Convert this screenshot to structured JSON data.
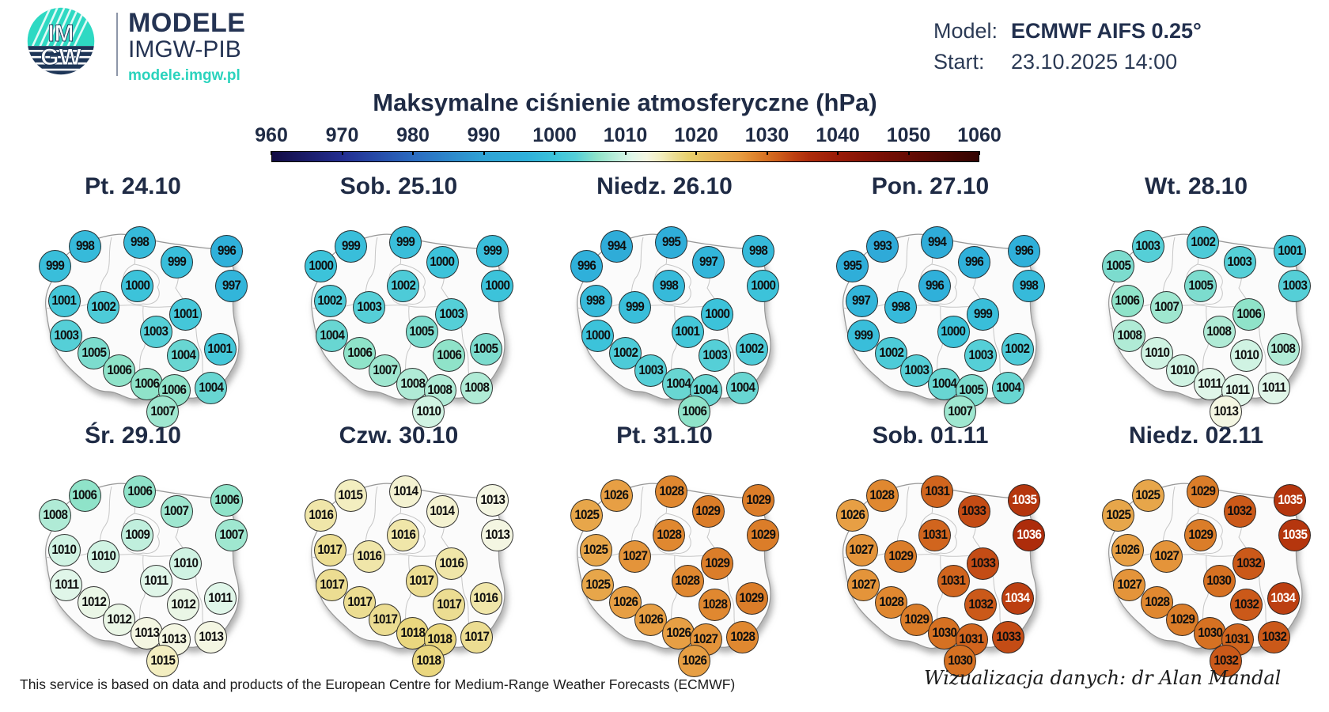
{
  "header": {
    "logo": {
      "top_letters": "IM",
      "bottom_letters": "GW",
      "teal": "#2ed9c3",
      "navy": "#1d3557"
    },
    "brand": "MODELE",
    "org": "IMGW-PIB",
    "site": "modele.imgw.pl",
    "model_label": "Model:",
    "model_value": "ECMWF AIFS 0.25°",
    "start_label": "Start:",
    "start_value": "23.10.2025 14:00"
  },
  "title": "Maksymalne ciśnienie atmosferyczne (hPa)",
  "footer": {
    "left": "This service is based on data and products of the European Centre for Medium-Range Weather Forecasts (ECMWF)",
    "right": "Wizualizacja danych: dr Alan Mandal"
  },
  "styles": {
    "accent_teal": "#2bd3bd",
    "dark_navy": "#1f2b45",
    "white_text_min": 1034
  },
  "chart_data": {
    "type": "heatmap",
    "title": "Maksymalne ciśnienie atmosferyczne (hPa)",
    "legend_position": "top",
    "colorbar_range": [
      960,
      1060
    ],
    "colorbar_ticks": [
      960,
      970,
      980,
      990,
      1000,
      1010,
      1020,
      1030,
      1040,
      1050,
      1060
    ],
    "colormap": [
      [
        960,
        "#130c43"
      ],
      [
        970,
        "#232e91"
      ],
      [
        980,
        "#2b6bc0"
      ],
      [
        990,
        "#2fa3d5"
      ],
      [
        996,
        "#2fb0da"
      ],
      [
        1000,
        "#3cc3da"
      ],
      [
        1003,
        "#55cfd7"
      ],
      [
        1006,
        "#8fe3c9"
      ],
      [
        1009,
        "#c0efdd"
      ],
      [
        1011,
        "#e0f6e9"
      ],
      [
        1013,
        "#f4f6e2"
      ],
      [
        1015,
        "#f3eec0"
      ],
      [
        1017,
        "#ecdd92"
      ],
      [
        1019,
        "#e8d06c"
      ],
      [
        1022,
        "#e8b95a"
      ],
      [
        1026,
        "#e79f44"
      ],
      [
        1028,
        "#e08830"
      ],
      [
        1030,
        "#d67122"
      ],
      [
        1032,
        "#cb5919"
      ],
      [
        1034,
        "#bc3f11"
      ],
      [
        1036,
        "#ad2c0b"
      ],
      [
        1040,
        "#9a1c08"
      ],
      [
        1046,
        "#7a1005"
      ],
      [
        1052,
        "#5c0a03"
      ],
      [
        1060,
        "#330402"
      ]
    ],
    "station_positions_pct": [
      [
        29,
        21
      ],
      [
        53,
        19
      ],
      [
        69,
        28
      ],
      [
        91,
        23
      ],
      [
        16,
        30
      ],
      [
        52,
        39
      ],
      [
        93,
        39
      ],
      [
        20,
        46
      ],
      [
        37,
        49
      ],
      [
        73,
        52
      ],
      [
        21,
        62
      ],
      [
        60,
        60
      ],
      [
        33,
        70
      ],
      [
        72,
        71
      ],
      [
        88,
        68
      ],
      [
        44,
        78
      ],
      [
        56,
        84
      ],
      [
        68,
        87
      ],
      [
        84,
        86
      ],
      [
        63,
        97
      ]
    ],
    "days": [
      {
        "label": "Pt. 24.10",
        "values": [
          998,
          998,
          999,
          996,
          999,
          1000,
          997,
          1001,
          1002,
          1001,
          1003,
          1003,
          1005,
          1004,
          1001,
          1006,
          1006,
          1006,
          1004,
          1007
        ]
      },
      {
        "label": "Sob. 25.10",
        "values": [
          999,
          999,
          1000,
          999,
          1000,
          1002,
          1000,
          1002,
          1003,
          1003,
          1004,
          1005,
          1006,
          1006,
          1005,
          1007,
          1008,
          1008,
          1008,
          1010
        ]
      },
      {
        "label": "Niedz. 26.10",
        "values": [
          994,
          995,
          997,
          998,
          996,
          998,
          1000,
          998,
          999,
          1000,
          1000,
          1001,
          1002,
          1003,
          1002,
          1003,
          1004,
          1004,
          1004,
          1006
        ]
      },
      {
        "label": "Pon. 27.10",
        "values": [
          993,
          994,
          996,
          996,
          995,
          996,
          998,
          997,
          998,
          999,
          999,
          1000,
          1002,
          1003,
          1002,
          1003,
          1004,
          1005,
          1004,
          1007
        ]
      },
      {
        "label": "Wt. 28.10",
        "values": [
          1003,
          1002,
          1003,
          1001,
          1005,
          1005,
          1003,
          1006,
          1007,
          1006,
          1008,
          1008,
          1010,
          1010,
          1008,
          1010,
          1011,
          1011,
          1011,
          1013
        ]
      },
      {
        "label": "Śr. 29.10",
        "values": [
          1006,
          1006,
          1007,
          1006,
          1008,
          1009,
          1007,
          1010,
          1010,
          1010,
          1011,
          1011,
          1012,
          1012,
          1011,
          1012,
          1013,
          1013,
          1013,
          1015
        ]
      },
      {
        "label": "Czw. 30.10",
        "values": [
          1015,
          1014,
          1014,
          1013,
          1016,
          1016,
          1013,
          1017,
          1016,
          1016,
          1017,
          1017,
          1017,
          1017,
          1016,
          1017,
          1018,
          1018,
          1017,
          1018
        ]
      },
      {
        "label": "Pt. 31.10",
        "values": [
          1026,
          1028,
          1029,
          1029,
          1025,
          1028,
          1029,
          1025,
          1027,
          1029,
          1025,
          1028,
          1026,
          1028,
          1029,
          1026,
          1026,
          1027,
          1028,
          1026
        ]
      },
      {
        "label": "Sob. 01.11",
        "values": [
          1028,
          1031,
          1033,
          1035,
          1026,
          1031,
          1036,
          1027,
          1029,
          1033,
          1027,
          1031,
          1028,
          1032,
          1034,
          1029,
          1030,
          1031,
          1033,
          1030
        ]
      },
      {
        "label": "Niedz. 02.11",
        "values": [
          1025,
          1029,
          1032,
          1035,
          1025,
          1029,
          1035,
          1026,
          1027,
          1032,
          1027,
          1030,
          1028,
          1032,
          1034,
          1029,
          1030,
          1031,
          1032,
          1032
        ]
      }
    ]
  }
}
